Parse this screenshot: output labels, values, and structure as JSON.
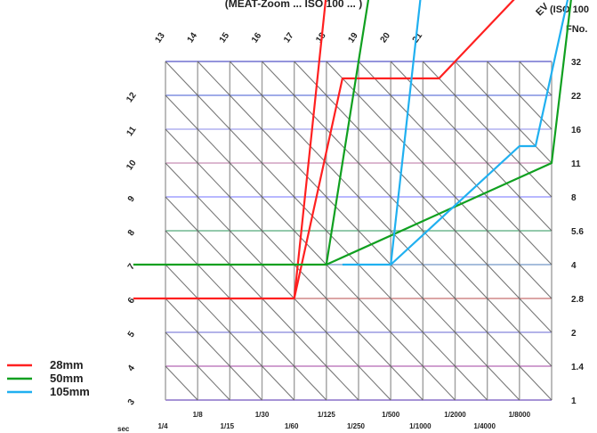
{
  "chart_data": {
    "type": "line",
    "title": "(MEAT-Zoom ... ISO 100 ... )",
    "iso_label": "(ISO 100",
    "ev_symbol": "EV",
    "fnumber_header": "FNo.",
    "sec_label": "sec",
    "x_axis": {
      "label": "sec",
      "ticks_upper": [
        "1/8",
        "1/30",
        "1/125",
        "1/500",
        "1/2000",
        "1/8000"
      ],
      "ticks_lower": [
        "1/4",
        "1/15",
        "1/60",
        "1/250",
        "1/1000",
        "1/4000"
      ]
    },
    "y_axis": {
      "label": "FNo.",
      "ticks": [
        "1",
        "1.4",
        "2",
        "2.8",
        "4",
        "5.6",
        "8",
        "11",
        "16",
        "22",
        "32"
      ]
    },
    "ev_diagonal_labels": [
      "3",
      "4",
      "5",
      "6",
      "7",
      "8",
      "9",
      "10",
      "11",
      "12",
      "13",
      "14",
      "15",
      "16",
      "17",
      "18",
      "19",
      "20",
      "21"
    ],
    "series": [
      {
        "name": "28mm",
        "color": "#ff2020",
        "lines": [
          [
            [
              -1,
              3
            ],
            [
              4,
              3
            ],
            [
              5,
              12
            ],
            [
              8,
              12
            ],
            [
              13,
              14
            ]
          ],
          [
            [
              4,
              3
            ],
            [
              5.5,
              9.5
            ],
            [
              8.5,
              9.5
            ],
            [
              13,
              14
            ]
          ]
        ]
      },
      {
        "name": "50mm",
        "color": "#10a020",
        "lines": [
          [
            [
              -1,
              4
            ],
            [
              5,
              4
            ],
            [
              6.5,
              13
            ],
            [
              8.5,
              13
            ],
            [
              13,
              15
            ]
          ],
          [
            [
              5,
              4
            ],
            [
              12,
              7
            ],
            [
              13,
              15
            ]
          ]
        ]
      },
      {
        "name": "105mm",
        "color": "#20b0f0",
        "lines": [
          [
            [
              5.5,
              4
            ],
            [
              7,
              4
            ],
            [
              8,
              12.5
            ],
            [
              9,
              12.5
            ],
            [
              13,
              14.5
            ]
          ],
          [
            [
              7,
              4
            ],
            [
              11,
              7.5
            ],
            [
              11.5,
              7.5
            ],
            [
              13,
              14
            ]
          ]
        ]
      }
    ]
  }
}
